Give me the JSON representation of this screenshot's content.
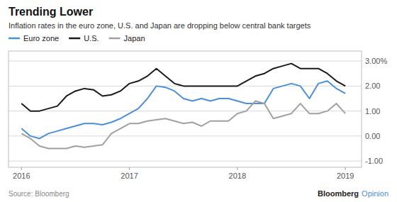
{
  "chart_data": {
    "type": "line",
    "title": "Trending Lower",
    "subtitle": "Inflation rates in the euro zone, U.S. and Japan are dropping below central bank targets",
    "source": "Source: Bloomberg",
    "annotations": [
      "Bloomberg",
      "Opinion"
    ],
    "x": [
      2016.0,
      2016.083,
      2016.167,
      2016.25,
      2016.333,
      2016.417,
      2016.5,
      2016.583,
      2016.667,
      2016.75,
      2016.833,
      2016.917,
      2017.0,
      2017.083,
      2017.167,
      2017.25,
      2017.333,
      2017.417,
      2017.5,
      2017.583,
      2017.667,
      2017.75,
      2017.833,
      2017.917,
      2018.0,
      2018.083,
      2018.167,
      2018.25,
      2018.333,
      2018.417,
      2018.5,
      2018.583,
      2018.667,
      2018.75,
      2018.833,
      2018.917,
      2019.0
    ],
    "series": [
      {
        "name": "Euro zone",
        "color": "#4a90d9",
        "values": [
          0.3,
          0.0,
          -0.1,
          0.1,
          0.2,
          0.3,
          0.4,
          0.5,
          0.5,
          0.45,
          0.55,
          0.7,
          0.9,
          1.1,
          1.5,
          2.0,
          1.95,
          1.8,
          1.5,
          1.4,
          1.5,
          1.4,
          1.5,
          1.5,
          1.4,
          1.3,
          1.3,
          1.3,
          1.9,
          2.0,
          2.1,
          2.0,
          1.5,
          2.1,
          2.2,
          1.9,
          1.7
        ]
      },
      {
        "name": "U.S.",
        "color": "#1a1a1a",
        "values": [
          1.3,
          1.0,
          1.0,
          1.1,
          1.2,
          1.6,
          1.8,
          1.9,
          1.85,
          1.6,
          1.65,
          1.8,
          2.1,
          2.2,
          2.4,
          2.7,
          2.4,
          2.1,
          2.0,
          2.0,
          2.0,
          2.0,
          2.0,
          2.0,
          2.0,
          2.2,
          2.4,
          2.5,
          2.7,
          2.8,
          2.9,
          2.7,
          2.7,
          2.7,
          2.5,
          2.2,
          2.0
        ]
      },
      {
        "name": "Japan",
        "color": "#a0a0a0",
        "values": [
          0.1,
          -0.1,
          -0.4,
          -0.5,
          -0.5,
          -0.5,
          -0.4,
          -0.45,
          -0.4,
          -0.35,
          0.1,
          0.3,
          0.5,
          0.5,
          0.6,
          0.65,
          0.7,
          0.6,
          0.5,
          0.55,
          0.4,
          0.6,
          0.6,
          0.6,
          0.9,
          1.0,
          1.4,
          1.3,
          0.7,
          0.8,
          0.9,
          1.3,
          0.9,
          0.9,
          1.0,
          1.3,
          0.9
        ]
      }
    ],
    "xlim": [
      2015.88,
      2019.15
    ],
    "xticks": [
      2016,
      2017,
      2018,
      2019
    ],
    "ylim": [
      -1.25,
      3.4
    ],
    "yticks": [
      {
        "value": -1.0,
        "label": "-1.00"
      },
      {
        "value": 0.0,
        "label": "0.00"
      },
      {
        "value": 1.0,
        "label": "1.00"
      },
      {
        "value": 2.0,
        "label": "2.00"
      },
      {
        "value": 3.0,
        "label": "3.00%"
      }
    ],
    "grid": true,
    "legend": "top"
  }
}
